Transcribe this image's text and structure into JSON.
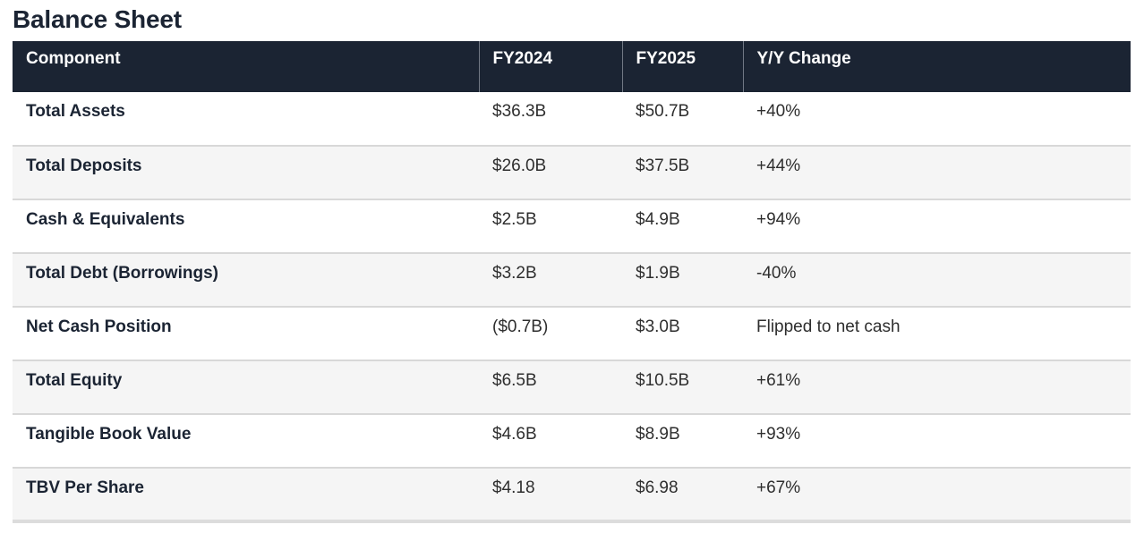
{
  "title": "Balance Sheet",
  "table": {
    "columns": [
      {
        "key": "component",
        "label": "Component"
      },
      {
        "key": "fy2024",
        "label": "FY2024"
      },
      {
        "key": "fy2025",
        "label": "FY2025"
      },
      {
        "key": "change",
        "label": "Y/Y Change"
      }
    ],
    "rows": [
      {
        "component": "Total Assets",
        "fy2024": "$36.3B",
        "fy2025": "$50.7B",
        "change": "+40%"
      },
      {
        "component": "Total Deposits",
        "fy2024": "$26.0B",
        "fy2025": "$37.5B",
        "change": "+44%"
      },
      {
        "component": "Cash & Equivalents",
        "fy2024": "$2.5B",
        "fy2025": "$4.9B",
        "change": "+94%"
      },
      {
        "component": "Total Debt (Borrowings)",
        "fy2024": "$3.2B",
        "fy2025": "$1.9B",
        "change": "-40%"
      },
      {
        "component": "Net Cash Position",
        "fy2024": "($0.7B)",
        "fy2025": "$3.0B",
        "change": "Flipped to net cash"
      },
      {
        "component": "Total Equity",
        "fy2024": "$6.5B",
        "fy2025": "$10.5B",
        "change": "+61%"
      },
      {
        "component": "Tangible Book Value",
        "fy2024": "$4.6B",
        "fy2025": "$8.9B",
        "change": "+93%"
      },
      {
        "component": "TBV Per Share",
        "fy2024": "$4.18",
        "fy2025": "$6.98",
        "change": "+67%"
      }
    ]
  },
  "colors": {
    "header_bg": "#1b2433",
    "header_text": "#ffffff",
    "header_divider": "#717884",
    "title_text": "#1b2433",
    "label_text": "#1b2433",
    "value_text": "#2e2e2e",
    "row_stripe": "#f5f5f5",
    "row_border": "#d8d8d8",
    "table_bottom_border": "#dcdcdc"
  }
}
